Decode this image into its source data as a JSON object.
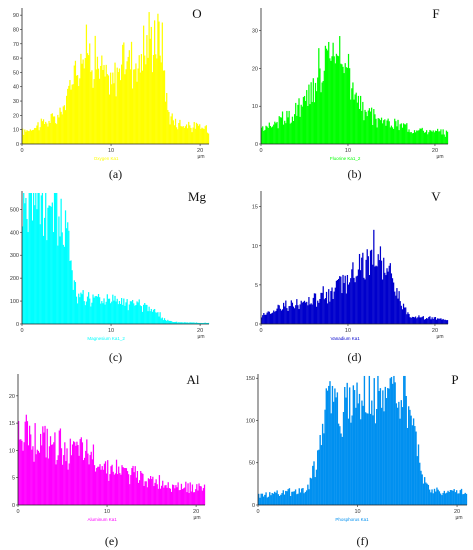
{
  "chart_data": [
    {
      "type": "histogram",
      "caption": "(a)",
      "element": "O",
      "series_label": "Oxygen Ka1",
      "color": "#ffff00",
      "xunit": "μm",
      "xlim": [
        0,
        21
      ],
      "ylim": [
        0,
        95
      ],
      "xticks": [
        0,
        10,
        20
      ],
      "yticks": [
        0,
        10,
        20,
        30,
        40,
        50,
        60,
        70,
        80,
        90
      ],
      "profile": [
        [
          0,
          8
        ],
        [
          2,
          14
        ],
        [
          4,
          18
        ],
        [
          5,
          30
        ],
        [
          6,
          55
        ],
        [
          7,
          65
        ],
        [
          8,
          62
        ],
        [
          9,
          50
        ],
        [
          10,
          40
        ],
        [
          11,
          55
        ],
        [
          12,
          62
        ],
        [
          13,
          55
        ],
        [
          14,
          70
        ],
        [
          15,
          78
        ],
        [
          15.8,
          68
        ],
        [
          16.3,
          25
        ],
        [
          17,
          16
        ],
        [
          19,
          12
        ],
        [
          21,
          11
        ]
      ]
    },
    {
      "type": "histogram",
      "caption": "(b)",
      "element": "F",
      "series_label": "Fluorine Ka1_2",
      "color": "#00ff00",
      "xunit": "μm",
      "xlim": [
        0,
        21.5
      ],
      "ylim": [
        0,
        36
      ],
      "xticks": [
        0,
        10,
        20
      ],
      "yticks": [
        0,
        10,
        20,
        30
      ],
      "profile": [
        [
          0,
          4
        ],
        [
          2,
          6
        ],
        [
          4,
          8
        ],
        [
          5,
          10
        ],
        [
          6,
          15
        ],
        [
          7,
          22
        ],
        [
          8,
          27
        ],
        [
          9,
          24
        ],
        [
          10,
          18
        ],
        [
          11,
          12
        ],
        [
          12,
          8
        ],
        [
          14,
          6
        ],
        [
          16,
          5
        ],
        [
          18,
          4
        ],
        [
          20,
          3
        ],
        [
          21.5,
          3
        ]
      ]
    },
    {
      "type": "histogram",
      "caption": "(c)",
      "element": "Mg",
      "series_label": "Magnesium Ka1_2",
      "color": "#00ffff",
      "xunit": "μm",
      "xlim": [
        0,
        21
      ],
      "ylim": [
        0,
        580
      ],
      "xticks": [
        0,
        10,
        20
      ],
      "yticks": [
        0,
        100,
        200,
        300,
        400,
        500
      ],
      "profile": [
        [
          0,
          520
        ],
        [
          2,
          540
        ],
        [
          3.5,
          520
        ],
        [
          4.5,
          470
        ],
        [
          5.2,
          380
        ],
        [
          5.8,
          200
        ],
        [
          6.3,
          110
        ],
        [
          8,
          115
        ],
        [
          10,
          100
        ],
        [
          12,
          90
        ],
        [
          14,
          75
        ],
        [
          15,
          55
        ],
        [
          16,
          20
        ],
        [
          17,
          8
        ],
        [
          21,
          5
        ]
      ]
    },
    {
      "type": "histogram",
      "caption": "(d)",
      "element": "V",
      "series_label": "Vanadium Ka1",
      "color": "#0000cc",
      "xunit": "μm",
      "xlim": [
        0,
        21.5
      ],
      "ylim": [
        0,
        17
      ],
      "xticks": [
        0,
        10,
        20
      ],
      "yticks": [
        0,
        5,
        10,
        15
      ],
      "profile": [
        [
          0,
          1
        ],
        [
          2,
          2
        ],
        [
          4,
          2.5
        ],
        [
          6,
          3
        ],
        [
          8,
          4
        ],
        [
          10,
          6
        ],
        [
          12,
          8
        ],
        [
          13,
          9
        ],
        [
          14,
          8
        ],
        [
          15,
          6
        ],
        [
          16,
          3
        ],
        [
          17,
          1
        ],
        [
          19,
          0.8
        ],
        [
          21.5,
          0.6
        ]
      ]
    },
    {
      "type": "histogram",
      "caption": "(e)",
      "element": "Al",
      "series_label": "Aluminum Ka1",
      "color": "#ff00ff",
      "xunit": "μm",
      "xlim": [
        0,
        21
      ],
      "ylim": [
        0,
        24
      ],
      "xticks": [
        0,
        10,
        20
      ],
      "yticks": [
        0,
        5,
        10,
        15,
        20
      ],
      "profile": [
        [
          0,
          14
        ],
        [
          2,
          12
        ],
        [
          4,
          11
        ],
        [
          6,
          10
        ],
        [
          8,
          9
        ],
        [
          10,
          7
        ],
        [
          12,
          6
        ],
        [
          14,
          5
        ],
        [
          16,
          4
        ],
        [
          18,
          3.5
        ],
        [
          21,
          3
        ]
      ]
    },
    {
      "type": "histogram",
      "caption": "(f)",
      "element": "P",
      "series_label": "Phosphorus Ka1",
      "color": "#0090f0",
      "xunit": "μm",
      "xlim": [
        0,
        21
      ],
      "ylim": [
        0,
        155
      ],
      "xticks": [
        0,
        10,
        20
      ],
      "yticks": [
        0,
        50,
        100,
        150
      ],
      "profile": [
        [
          0,
          12
        ],
        [
          4,
          16
        ],
        [
          5,
          20
        ],
        [
          6,
          60
        ],
        [
          7,
          115
        ],
        [
          8,
          125
        ],
        [
          10,
          135
        ],
        [
          12,
          135
        ],
        [
          14,
          130
        ],
        [
          15,
          125
        ],
        [
          15.8,
          80
        ],
        [
          16.5,
          30
        ],
        [
          17,
          20
        ],
        [
          19,
          16
        ],
        [
          21,
          15
        ]
      ]
    }
  ]
}
